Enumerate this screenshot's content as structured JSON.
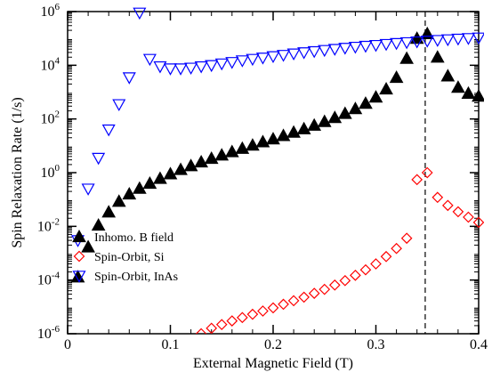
{
  "chart_data": {
    "type": "scatter",
    "xlabel": "External Magnetic Field (T)",
    "ylabel": "Spin Relaxation Rate (1/s)",
    "xlim": [
      0,
      0.4
    ],
    "ylim": [
      1e-06,
      1000000.0
    ],
    "yscale": "log",
    "grid": false,
    "legend_position": "lower-left",
    "x_ticks": [
      {
        "value": 0,
        "label": "0"
      },
      {
        "value": 0.1,
        "label": "0.1"
      },
      {
        "value": 0.2,
        "label": "0.2"
      },
      {
        "value": 0.3,
        "label": "0.3"
      },
      {
        "value": 0.4,
        "label": "0.4"
      }
    ],
    "y_ticks": [
      {
        "exp": -6,
        "base": "10",
        "sup": "-6"
      },
      {
        "exp": -4,
        "base": "10",
        "sup": "-4"
      },
      {
        "exp": -2,
        "base": "10",
        "sup": "-2"
      },
      {
        "exp": 0,
        "base": "10",
        "sup": "0"
      },
      {
        "exp": 2,
        "base": "10",
        "sup": "2"
      },
      {
        "exp": 4,
        "base": "10",
        "sup": "4"
      },
      {
        "exp": 6,
        "base": "10",
        "sup": "6"
      }
    ],
    "vline_x": 0.348,
    "series": [
      {
        "name": "Inhomo. B field",
        "marker": "triangle-up-filled",
        "color": "#000000",
        "points": [
          [
            0.01,
            0.00013
          ],
          [
            0.02,
            0.0017
          ],
          [
            0.03,
            0.011
          ],
          [
            0.04,
            0.034
          ],
          [
            0.05,
            0.085
          ],
          [
            0.06,
            0.16
          ],
          [
            0.07,
            0.26
          ],
          [
            0.08,
            0.4
          ],
          [
            0.09,
            0.61
          ],
          [
            0.1,
            0.9
          ],
          [
            0.11,
            1.3
          ],
          [
            0.12,
            1.8
          ],
          [
            0.13,
            2.5
          ],
          [
            0.14,
            3.4
          ],
          [
            0.15,
            4.5
          ],
          [
            0.16,
            6.0
          ],
          [
            0.17,
            8.0
          ],
          [
            0.18,
            10.5
          ],
          [
            0.19,
            14
          ],
          [
            0.2,
            18
          ],
          [
            0.21,
            24
          ],
          [
            0.22,
            32
          ],
          [
            0.23,
            43
          ],
          [
            0.24,
            58
          ],
          [
            0.25,
            80
          ],
          [
            0.26,
            112
          ],
          [
            0.27,
            160
          ],
          [
            0.28,
            240
          ],
          [
            0.29,
            380
          ],
          [
            0.3,
            650
          ],
          [
            0.31,
            1300
          ],
          [
            0.32,
            3500
          ],
          [
            0.33,
            18000
          ],
          [
            0.34,
            100000
          ],
          [
            0.35,
            150000
          ],
          [
            0.36,
            20000
          ],
          [
            0.37,
            4000
          ],
          [
            0.38,
            1500
          ],
          [
            0.39,
            900
          ],
          [
            0.4,
            700
          ]
        ]
      },
      {
        "name": "Spin-Orbit, Si",
        "marker": "diamond-open",
        "color": "#ff0000",
        "points": [
          [
            0.13,
            1e-06
          ],
          [
            0.14,
            1.6e-06
          ],
          [
            0.15,
            2.2e-06
          ],
          [
            0.16,
            3e-06
          ],
          [
            0.17,
            4e-06
          ],
          [
            0.18,
            5.3e-06
          ],
          [
            0.19,
            7e-06
          ],
          [
            0.2,
            9.2e-06
          ],
          [
            0.21,
            1.25e-05
          ],
          [
            0.22,
            1.7e-05
          ],
          [
            0.23,
            2.3e-05
          ],
          [
            0.24,
            3.2e-05
          ],
          [
            0.25,
            4.5e-05
          ],
          [
            0.26,
            6.5e-05
          ],
          [
            0.27,
            9.5e-05
          ],
          [
            0.28,
            0.00015
          ],
          [
            0.29,
            0.00024
          ],
          [
            0.3,
            0.0004
          ],
          [
            0.31,
            0.00075
          ],
          [
            0.32,
            0.0015
          ],
          [
            0.33,
            0.0036
          ],
          [
            0.34,
            0.55
          ],
          [
            0.35,
            1.0
          ],
          [
            0.36,
            0.12
          ],
          [
            0.37,
            0.06
          ],
          [
            0.38,
            0.035
          ],
          [
            0.39,
            0.022
          ],
          [
            0.4,
            0.014
          ]
        ]
      },
      {
        "name": "Spin-Orbit, InAs",
        "marker": "triangle-down-open",
        "color": "#0000ff",
        "points": [
          [
            0.01,
            0.003
          ],
          [
            0.02,
            0.25
          ],
          [
            0.03,
            3.5
          ],
          [
            0.04,
            40
          ],
          [
            0.05,
            350
          ],
          [
            0.06,
            3500
          ],
          [
            0.07,
            900000
          ],
          [
            0.08,
            17000
          ],
          [
            0.09,
            9000
          ],
          [
            0.1,
            7500
          ],
          [
            0.11,
            7500
          ],
          [
            0.12,
            8000
          ],
          [
            0.13,
            9000
          ],
          [
            0.14,
            10000
          ],
          [
            0.15,
            11500
          ],
          [
            0.16,
            13000
          ],
          [
            0.17,
            15000
          ],
          [
            0.18,
            17000
          ],
          [
            0.19,
            19000
          ],
          [
            0.2,
            21500
          ],
          [
            0.21,
            24000
          ],
          [
            0.22,
            27000
          ],
          [
            0.23,
            30000
          ],
          [
            0.24,
            33000
          ],
          [
            0.25,
            36500
          ],
          [
            0.26,
            40000
          ],
          [
            0.27,
            44000
          ],
          [
            0.28,
            48000
          ],
          [
            0.29,
            52000
          ],
          [
            0.3,
            56000
          ],
          [
            0.31,
            61000
          ],
          [
            0.32,
            66000
          ],
          [
            0.33,
            71000
          ],
          [
            0.34,
            76000
          ],
          [
            0.35,
            81000
          ],
          [
            0.36,
            86000
          ],
          [
            0.37,
            91000
          ],
          [
            0.38,
            96000
          ],
          [
            0.39,
            101000
          ],
          [
            0.4,
            106000
          ]
        ]
      }
    ]
  }
}
